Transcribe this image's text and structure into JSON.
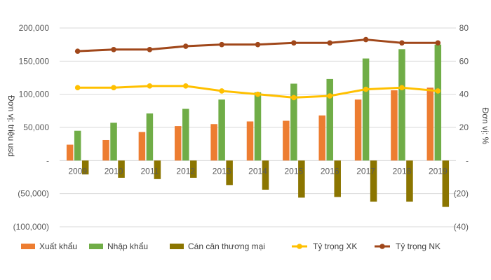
{
  "chart_data": {
    "type": "bar",
    "categories": [
      "2009",
      "2010",
      "2011",
      "2012",
      "2013",
      "2014",
      "2015",
      "2016",
      "2017",
      "2018",
      "2019"
    ],
    "ylabel": "Đơn vị: triệu usd",
    "y2label": "Đơn vị: %",
    "ylim": [
      -100000,
      200000
    ],
    "y2lim": [
      -40,
      80
    ],
    "y_ticks": [
      "(100,000)",
      "(50,000)",
      "-",
      "50,000",
      "100,000",
      "150,000",
      "200,000"
    ],
    "y2_ticks": [
      "(40)",
      "(20)",
      "-",
      "20",
      "40",
      "60",
      "80"
    ],
    "legend_position": "bottom",
    "grid": true,
    "series": [
      {
        "name": "Xuất khẩu",
        "type": "bar",
        "axis": "left",
        "color": "#ED7D31",
        "values": [
          24000,
          31000,
          43000,
          52000,
          55000,
          59000,
          60000,
          68000,
          92000,
          106000,
          110000
        ]
      },
      {
        "name": "Nhập khẩu",
        "type": "bar",
        "axis": "left",
        "color": "#70AD47",
        "values": [
          45000,
          57000,
          71000,
          78000,
          92000,
          103000,
          116000,
          123000,
          154000,
          168000,
          175000
        ]
      },
      {
        "name": "Cán cân thương mại",
        "type": "bar",
        "axis": "left",
        "color": "#8B7500",
        "values": [
          -21000,
          -26000,
          -28000,
          -26000,
          -37000,
          -44000,
          -56000,
          -55000,
          -62000,
          -62000,
          -70000
        ]
      },
      {
        "name": "Tỷ trọng XK",
        "type": "line",
        "axis": "right",
        "color": "#FFC000",
        "values": [
          44,
          44,
          45,
          45,
          42,
          40,
          38,
          39,
          43,
          44,
          42
        ]
      },
      {
        "name": "Tỷ trọng NK",
        "type": "line",
        "axis": "right",
        "color": "#A0471A",
        "values": [
          66,
          67,
          67,
          69,
          70,
          70,
          71,
          71,
          73,
          71,
          71
        ]
      }
    ]
  }
}
